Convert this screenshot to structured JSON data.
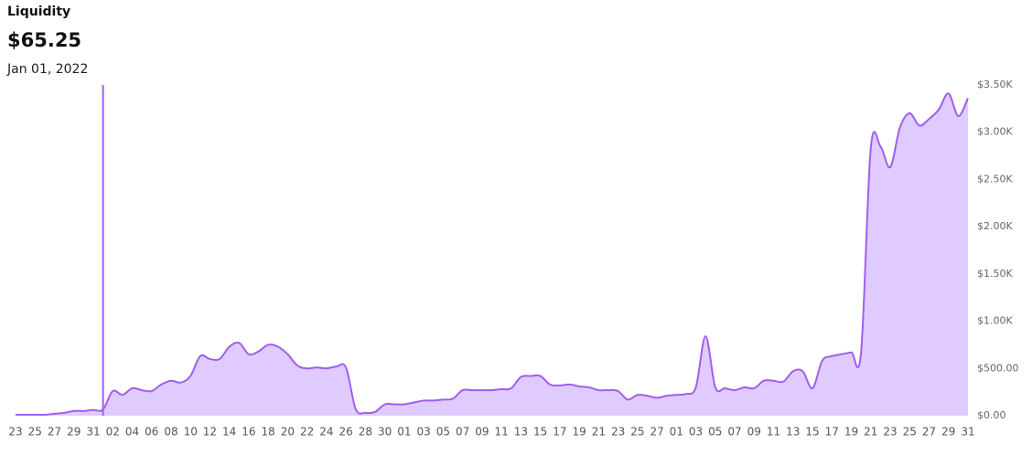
{
  "chart_data": {
    "type": "area",
    "title": "Liquidity",
    "headline": "$65.25",
    "headline_date": "Jan 01, 2022",
    "categories": [
      "23",
      null,
      "25",
      null,
      "27",
      null,
      "29",
      null,
      "31",
      null,
      "02",
      null,
      "04",
      null,
      "06",
      null,
      "08",
      null,
      "10",
      null,
      "12",
      null,
      "14",
      null,
      "16",
      null,
      "18",
      null,
      "20",
      null,
      "22",
      null,
      "24",
      null,
      "26",
      null,
      "28",
      null,
      "30",
      null,
      "01",
      null,
      "03",
      null,
      "05",
      null,
      "07",
      null,
      "09",
      null,
      "11",
      null,
      "13",
      null,
      "15",
      null,
      "17",
      null,
      "19",
      null,
      "21",
      null,
      "23",
      null,
      "25",
      null,
      "27",
      null,
      "01",
      null,
      "03",
      null,
      "05",
      null,
      "07",
      null,
      "09",
      null,
      "11",
      null,
      "13",
      null,
      "15",
      null,
      "17",
      null,
      "19",
      null,
      "21",
      null,
      "23",
      null,
      "25",
      null,
      "27",
      null,
      "29",
      null,
      "31"
    ],
    "series": [
      {
        "color": "#a05ef0",
        "fill": "#dfcbff",
        "values": [
          10,
          10,
          10,
          10,
          20,
          30,
          50,
          50,
          60,
          65.25,
          260,
          220,
          290,
          270,
          260,
          330,
          370,
          350,
          420,
          630,
          600,
          600,
          730,
          770,
          650,
          680,
          750,
          730,
          650,
          530,
          500,
          510,
          500,
          520,
          510,
          70,
          30,
          40,
          120,
          120,
          120,
          140,
          160,
          160,
          170,
          180,
          270,
          270,
          270,
          270,
          280,
          290,
          410,
          420,
          420,
          330,
          320,
          330,
          310,
          300,
          270,
          270,
          260,
          170,
          220,
          210,
          190,
          210,
          220,
          230,
          300,
          840,
          300,
          290,
          270,
          300,
          290,
          370,
          370,
          360,
          470,
          470,
          290,
          580,
          630,
          650,
          670,
          670,
          2830,
          2850,
          2630,
          3050,
          3200,
          3070,
          3140,
          3240,
          3410,
          3170,
          3360
        ]
      }
    ],
    "ylim": [
      0,
      3500
    ],
    "yticks": [
      {
        "value": 0,
        "label": "$0.00"
      },
      {
        "value": 500,
        "label": "$500.00"
      },
      {
        "value": 1000,
        "label": "$1.00K"
      },
      {
        "value": 1500,
        "label": "$1.50K"
      },
      {
        "value": 2000,
        "label": "$2.00K"
      },
      {
        "value": 2500,
        "label": "$2.50K"
      },
      {
        "value": 3000,
        "label": "$3.00K"
      },
      {
        "value": 3500,
        "label": "$3.50K"
      }
    ]
  }
}
